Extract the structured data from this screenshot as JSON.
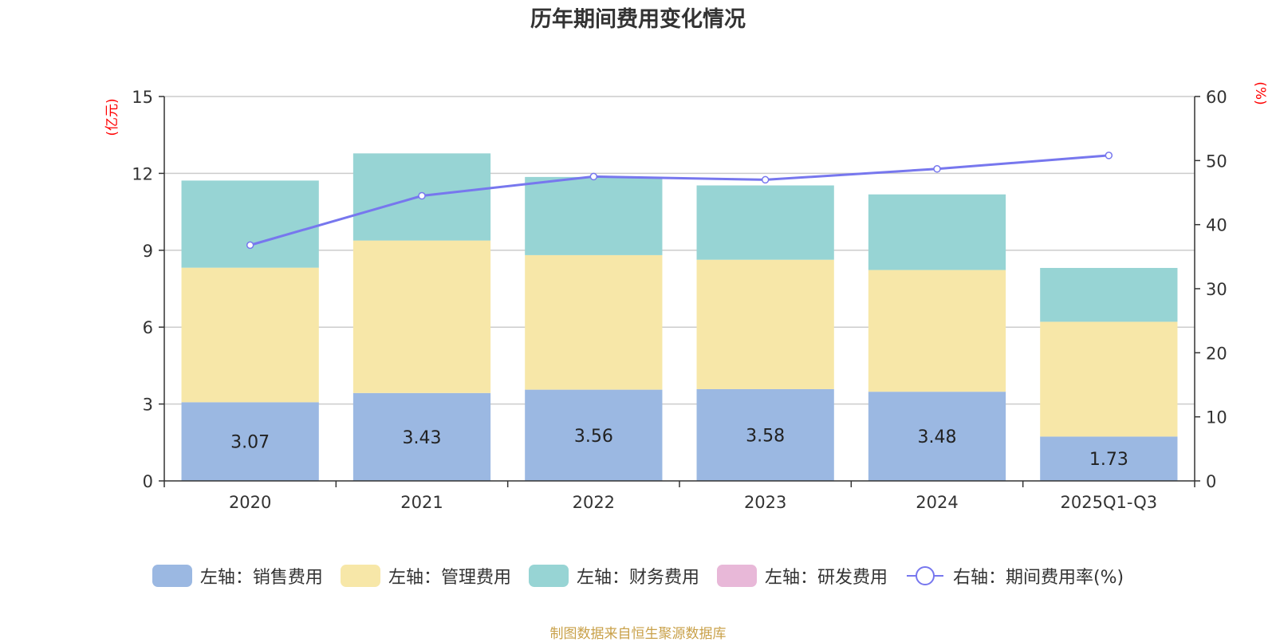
{
  "chart_data": {
    "type": "bar",
    "stacked": true,
    "title": "历年期间费用变化情况",
    "categories": [
      "2020",
      "2021",
      "2022",
      "2023",
      "2024",
      "2025Q1-Q3"
    ],
    "left_axis": {
      "unit": "(亿元)",
      "ylim": [
        0,
        15
      ],
      "ticks": [
        0,
        3,
        6,
        9,
        12,
        15
      ]
    },
    "right_axis": {
      "unit": "(%)",
      "ylim": [
        0,
        60
      ],
      "ticks": [
        0,
        10,
        20,
        30,
        40,
        50,
        60
      ]
    },
    "series": [
      {
        "name": "左轴：销售费用",
        "axis": "left",
        "type": "bar",
        "color": "#9bb8e2",
        "values": [
          3.07,
          3.43,
          3.56,
          3.58,
          3.48,
          1.73
        ],
        "show_labels": true
      },
      {
        "name": "左轴：管理费用",
        "axis": "left",
        "type": "bar",
        "color": "#f7e7a8",
        "values": [
          5.25,
          5.95,
          5.25,
          5.05,
          4.75,
          4.48
        ],
        "show_labels": false
      },
      {
        "name": "左轴：财务费用",
        "axis": "left",
        "type": "bar",
        "color": "#97d4d4",
        "values": [
          3.4,
          3.4,
          3.05,
          2.9,
          2.95,
          2.1
        ],
        "show_labels": false
      },
      {
        "name": "左轴：研发费用",
        "axis": "left",
        "type": "bar",
        "color": "#e8b8d8",
        "values": [
          0,
          0,
          0,
          0,
          0,
          0
        ],
        "show_labels": false
      },
      {
        "name": "右轴：期间费用率(%)",
        "axis": "right",
        "type": "line",
        "color": "#7777ee",
        "values": [
          36.8,
          44.5,
          47.5,
          47.0,
          48.7,
          50.8
        ]
      }
    ],
    "label_decimals": 2
  },
  "footer": "制图数据来自恒生聚源数据库"
}
